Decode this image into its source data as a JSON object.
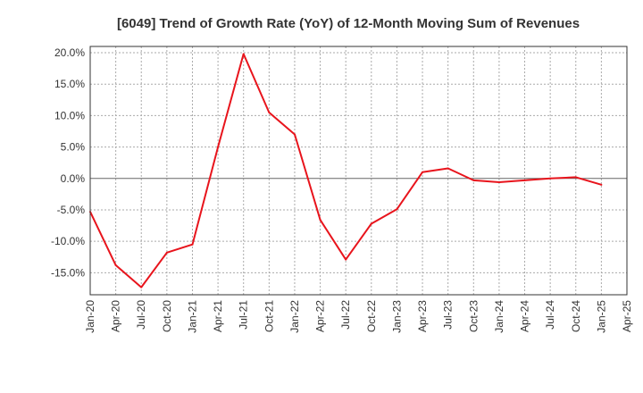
{
  "chart_data": {
    "type": "line",
    "title": "[6049]  Trend of Growth Rate (YoY) of 12-Month Moving Sum of Revenues",
    "xlabel": "",
    "ylabel": "",
    "x_ticks": [
      "Jan-20",
      "Apr-20",
      "Jul-20",
      "Oct-20",
      "Jan-21",
      "Apr-21",
      "Jul-21",
      "Oct-21",
      "Jan-22",
      "Apr-22",
      "Jul-22",
      "Oct-22",
      "Jan-23",
      "Apr-23",
      "Jul-23",
      "Oct-23",
      "Jan-24",
      "Apr-24",
      "Jul-24",
      "Oct-24",
      "Jan-25",
      "Apr-25"
    ],
    "y_ticks": [
      20,
      15,
      10,
      5,
      0,
      -5,
      -10,
      -15
    ],
    "y_tick_labels": [
      "20.0%",
      "15.0%",
      "10.0%",
      "5.0%",
      "0.0%",
      "-5.0%",
      "-10.0%",
      "-15.0%"
    ],
    "ylim": [
      -18.5,
      21
    ],
    "grid": true,
    "zero_line": true,
    "series": [
      {
        "color": "#e8141c",
        "x": [
          "Jan-20",
          "Apr-20",
          "Jul-20",
          "Oct-20",
          "Jan-21",
          "Apr-21",
          "Jul-21",
          "Oct-21",
          "Jan-22",
          "Apr-22",
          "Jul-22",
          "Oct-22",
          "Jan-23",
          "Apr-23",
          "Jul-23",
          "Oct-23",
          "Jan-24",
          "Apr-24",
          "Jul-24",
          "Oct-24",
          "Jan-25"
        ],
        "values": [
          -5.3,
          -13.8,
          -17.3,
          -11.8,
          -10.5,
          5.0,
          19.8,
          10.5,
          7.0,
          -6.6,
          -12.9,
          -7.2,
          -4.9,
          1.0,
          1.6,
          -0.3,
          -0.6,
          -0.3,
          0.0,
          0.2,
          -1.0
        ]
      }
    ]
  }
}
